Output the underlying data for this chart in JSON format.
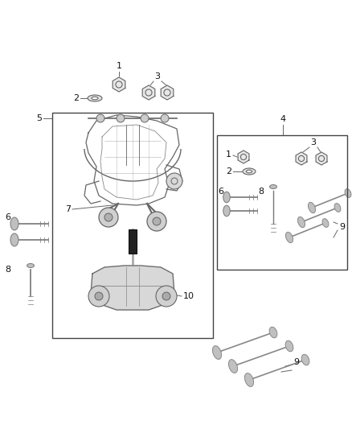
{
  "bg_color": "#ffffff",
  "fig_width": 4.38,
  "fig_height": 5.33,
  "dpi": 100,
  "line_color": "#555555",
  "part_color": "#888888",
  "dark_color": "#222222",
  "gray_fill": "#c8c8c8",
  "light_gray": "#e0e0e0"
}
